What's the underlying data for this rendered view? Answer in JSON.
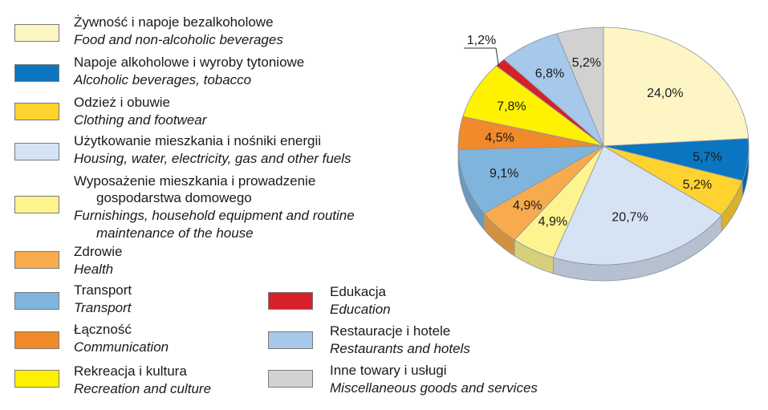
{
  "chart_data": {
    "type": "pie",
    "title": "",
    "slices": [
      {
        "pl": "Żywność i napoje bezalkoholowe",
        "en": "Food and non-alcoholic beverages",
        "value": 24.0,
        "label": "24,0%",
        "color": "#fdf5c4"
      },
      {
        "pl": "Napoje alkoholowe i wyroby tytoniowe",
        "en": "Alcoholic beverages, tobacco",
        "value": 5.7,
        "label": "5,7%",
        "color": "#0a76c2"
      },
      {
        "pl": "Odzież i obuwie",
        "en": "Clothing and footwear",
        "value": 5.2,
        "label": "5,2%",
        "color": "#fed22f"
      },
      {
        "pl": "Użytkowanie mieszkania i nośniki energii",
        "en": "Housing, water, electricity, gas and other fuels",
        "value": 20.7,
        "label": "20,7%",
        "color": "#d6e3f4"
      },
      {
        "pl": "Wyposażenie mieszkania i prowadzenie\n      gospodarstwa domowego",
        "en": "Furnishings, household equipment and routine\n      maintenance of the house",
        "value": 4.9,
        "label": "4,9%",
        "color": "#fdf48f"
      },
      {
        "pl": "Zdrowie",
        "en": "Health",
        "value": 4.9,
        "label": "4,9%",
        "color": "#f7ab4c"
      },
      {
        "pl": "Transport",
        "en": "Transport",
        "value": 9.1,
        "label": "9,1%",
        "color": "#7fb5dd"
      },
      {
        "pl": "Łączność",
        "en": "Communication",
        "value": 4.5,
        "label": "4,5%",
        "color": "#f08a2b"
      },
      {
        "pl": "Rekreacja i kultura",
        "en": "Recreation and culture",
        "value": 7.8,
        "label": "7,8%",
        "color": "#fef200"
      },
      {
        "pl": "Edukacja",
        "en": "Education",
        "value": 1.2,
        "label": "1,2%",
        "color": "#d7202a"
      },
      {
        "pl": "Restauracje i hotele",
        "en": "Restaurants and hotels",
        "value": 6.8,
        "label": "6,8%",
        "color": "#a6c8ea"
      },
      {
        "pl": "Inne towary i usługi",
        "en": "Miscellaneous goods and services",
        "value": 5.2,
        "label": "5,2%",
        "color": "#d1d1d1"
      }
    ],
    "legend": [
      {
        "pl": "Żywność i napoje bezalkoholowe",
        "en": "Food and non-alcoholic beverages",
        "color": "#fdf5c4"
      },
      {
        "pl": "Napoje alkoholowe i wyroby tytoniowe",
        "en": "Alcoholic beverages, tobacco",
        "color": "#0a76c2"
      },
      {
        "pl": "Odzież i obuwie",
        "en": "Clothing and footwear",
        "color": "#fed22f"
      },
      {
        "pl": "Użytkowanie mieszkania i nośniki energii",
        "en": "Housing, water, electricity, gas and other fuels",
        "color": "#d6e3f4"
      },
      {
        "pl": "Wyposażenie mieszkania i prowadzenie",
        "pl2": "gospodarstwa domowego",
        "en": "Furnishings, household equipment and routine",
        "en2": "maintenance of the house",
        "color": "#fdf48f"
      },
      {
        "pl": "Zdrowie",
        "en": "Health",
        "color": "#f7ab4c"
      },
      {
        "pl": "Transport",
        "en": "Transport",
        "color": "#7fb5dd"
      },
      {
        "pl": "Łączność",
        "en": "Communication",
        "color": "#f08a2b"
      },
      {
        "pl": "Rekreacja i kultura",
        "en": "Recreation and culture",
        "color": "#fef200"
      },
      {
        "pl": "Edukacja",
        "en": "Education",
        "color": "#d7202a"
      },
      {
        "pl": "Restauracje i hotele",
        "en": "Restaurants and hotels",
        "color": "#a6c8ea"
      },
      {
        "pl": "Inne towary i usługi",
        "en": "Miscellaneous goods and services",
        "color": "#d1d1d1"
      }
    ]
  }
}
